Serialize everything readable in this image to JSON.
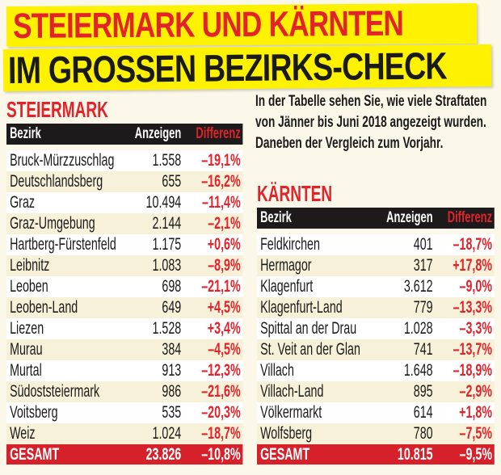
{
  "headline": {
    "line1": "STEIERMARK UND KÄRNTEN",
    "line2": "IM GROSSEN BEZIRKS-CHECK"
  },
  "intro_text": "In der Tabelle sehen Sie, wie viele Straftaten von Jänner bis Juni 2018 angezeigt wurden. Daneben der Vergleich zum Vorjahr.",
  "colors": {
    "accent_red": "#e3232b",
    "banner_yellow": "#fff200",
    "header_black": "#1c1a1a"
  },
  "tables": {
    "steiermark": {
      "title": "STEIERMARK",
      "columns": [
        "Bezirk",
        "Anzeigen",
        "Differenz"
      ],
      "rows": [
        [
          "Bruck-Mürzzuschlag",
          "1.558",
          "–19,1%"
        ],
        [
          "Deutschlandsberg",
          "655",
          "–16,2%"
        ],
        [
          "Graz",
          "10.494",
          "–11,4%"
        ],
        [
          "Graz-Umgebung",
          "2.144",
          "–2,1%"
        ],
        [
          "Hartberg-Fürstenfeld",
          "1.175",
          "+0,6%"
        ],
        [
          "Leibnitz",
          "1.083",
          "–8,9%"
        ],
        [
          "Leoben",
          "698",
          "–21,1%"
        ],
        [
          "Leoben-Land",
          "649",
          "+4,5%"
        ],
        [
          "Liezen",
          "1.528",
          "+3,4%"
        ],
        [
          "Murau",
          "384",
          "–4,5%"
        ],
        [
          "Murtal",
          "913",
          "–12,3%"
        ],
        [
          "Südoststeiermark",
          "986",
          "–21,6%"
        ],
        [
          "Voitsberg",
          "535",
          "–20,3%"
        ],
        [
          "Weiz",
          "1.024",
          "–18,7%"
        ]
      ],
      "total": [
        "GESAMT",
        "23.826",
        "–10,8%"
      ]
    },
    "kaernten": {
      "title": "KÄRNTEN",
      "columns": [
        "Bezirk",
        "Anzeigen",
        "Differenz"
      ],
      "rows": [
        [
          "Feldkirchen",
          "401",
          "–18,7%"
        ],
        [
          "Hermagor",
          "317",
          "+17,8%"
        ],
        [
          "Klagenfurt",
          "3.612",
          "–9,0%"
        ],
        [
          "Klagenfurt-Land",
          "779",
          "–13,3%"
        ],
        [
          "Spittal an der Drau",
          "1.028",
          "–3,3%"
        ],
        [
          "St. Veit an der Glan",
          "741",
          "–13,7%"
        ],
        [
          "Villach",
          "1.648",
          "–18,9%"
        ],
        [
          "Villach-Land",
          "895",
          "–2,9%"
        ],
        [
          "Völkermarkt",
          "614",
          "+1,8%"
        ],
        [
          "Wolfsberg",
          "780",
          "–7,5%"
        ]
      ],
      "total": [
        "GESAMT",
        "10.815",
        "–9,5%"
      ]
    }
  }
}
